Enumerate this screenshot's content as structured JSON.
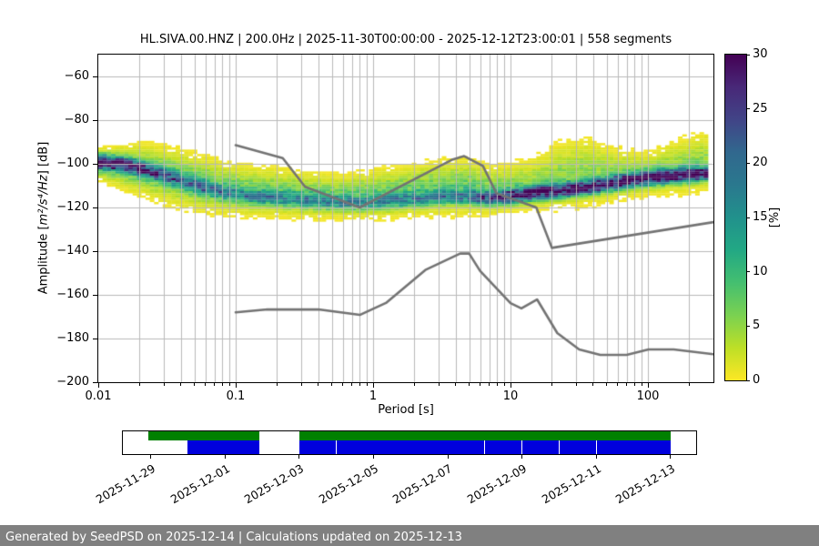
{
  "title": "HL.SIVA.00.HNZ | 200.0Hz | 2025-11-30T00:00:00 - 2025-12-12T23:00:01 | 558 segments",
  "axes": {
    "xlabel": "Period [s]",
    "ylabel_prefix": "Amplitude [",
    "ylabel_math": "m²/s⁴/Hz",
    "ylabel_suffix": "] [dB]",
    "x_log_range": [
      0.01,
      300
    ],
    "y_range": [
      -200,
      -50
    ],
    "x_major_ticks": [
      {
        "value": 0.01,
        "label": "0.01"
      },
      {
        "value": 0.1,
        "label": "0.1"
      },
      {
        "value": 1,
        "label": "1"
      },
      {
        "value": 10,
        "label": "10"
      },
      {
        "value": 100,
        "label": "100"
      }
    ],
    "y_ticks": [
      {
        "value": -60,
        "label": "−60"
      },
      {
        "value": -80,
        "label": "−80"
      },
      {
        "value": -100,
        "label": "−100"
      },
      {
        "value": -120,
        "label": "−120"
      },
      {
        "value": -140,
        "label": "−140"
      },
      {
        "value": -160,
        "label": "−160"
      },
      {
        "value": -180,
        "label": "−180"
      },
      {
        "value": -200,
        "label": "−200"
      }
    ],
    "grid_color": "#b9b9b9"
  },
  "colorbar": {
    "label": "[%]",
    "min": 0,
    "max": 30,
    "ticks": [
      0,
      5,
      10,
      15,
      20,
      25,
      30
    ],
    "colormap_reversed_viridis": [
      [
        0.0,
        "#fde725"
      ],
      [
        0.1,
        "#bddf26"
      ],
      [
        0.2,
        "#7ad151"
      ],
      [
        0.3,
        "#44bf70"
      ],
      [
        0.4,
        "#22a884"
      ],
      [
        0.5,
        "#21918c"
      ],
      [
        0.6,
        "#2a788e"
      ],
      [
        0.7,
        "#31688e"
      ],
      [
        0.8,
        "#414487"
      ],
      [
        0.9,
        "#482878"
      ],
      [
        1.0,
        "#440154"
      ]
    ]
  },
  "chart_data": {
    "type": "heatmap",
    "title": "HL.SIVA.00.HNZ | 200.0Hz | 2025-11-30T00:00:00 - 2025-12-12T23:00:01 | 558 segments",
    "xlabel": "Period [s]",
    "ylabel": "Amplitude [m2/s4/Hz] [dB]",
    "x_scale": "log",
    "xlim": [
      0.01,
      300
    ],
    "ylim": [
      -200,
      -50
    ],
    "colorbar": {
      "label": "[%]",
      "range": [
        0,
        30
      ],
      "colormap": "viridis_r"
    },
    "period_bins_per_decade": 32,
    "db_bin": 1,
    "ppsd_distribution": [
      {
        "p": 0.01,
        "mode": -99,
        "peak": 27,
        "top": -95,
        "bottom": -106,
        "cloud": 8,
        "wisp": 0.3
      },
      {
        "p": 0.014,
        "mode": -100,
        "peak": 24,
        "top": -94,
        "bottom": -109,
        "cloud": 8,
        "wisp": 0.28
      },
      {
        "p": 0.02,
        "mode": -102,
        "peak": 21,
        "top": -93,
        "bottom": -112,
        "cloud": 8,
        "wisp": 0.25
      },
      {
        "p": 0.032,
        "mode": -106,
        "peak": 15,
        "top": -95,
        "bottom": -116,
        "cloud": 8,
        "wisp": 0.18
      },
      {
        "p": 0.05,
        "mode": -110,
        "peak": 13,
        "top": -98,
        "bottom": -119,
        "cloud": 8,
        "wisp": 0.15
      },
      {
        "p": 0.08,
        "mode": -113,
        "peak": 12,
        "top": -101,
        "bottom": -121,
        "cloud": 7,
        "wisp": 0.18
      },
      {
        "p": 0.12,
        "mode": -115,
        "peak": 11,
        "top": -103,
        "bottom": -122,
        "cloud": 7,
        "wisp": 0.2
      },
      {
        "p": 0.2,
        "mode": -116,
        "peak": 11,
        "top": -104,
        "bottom": -122,
        "cloud": 7,
        "wisp": 0.2
      },
      {
        "p": 0.35,
        "mode": -117,
        "peak": 11,
        "top": -106,
        "bottom": -123,
        "cloud": 7,
        "wisp": 0.15
      },
      {
        "p": 0.6,
        "mode": -118,
        "peak": 11,
        "top": -107,
        "bottom": -123,
        "cloud": 7,
        "wisp": 0.12
      },
      {
        "p": 1.0,
        "mode": -118,
        "peak": 11,
        "top": -105,
        "bottom": -123,
        "cloud": 7,
        "wisp": 0.15
      },
      {
        "p": 1.8,
        "mode": -116.5,
        "peak": 12,
        "top": -103,
        "bottom": -122,
        "cloud": 7,
        "wisp": 0.15
      },
      {
        "p": 3.0,
        "mode": -115.5,
        "peak": 12,
        "top": -101,
        "bottom": -121,
        "cloud": 7,
        "wisp": 0.15
      },
      {
        "p": 5.0,
        "mode": -115,
        "peak": 14,
        "top": -100,
        "bottom": -121,
        "cloud": 7,
        "wisp": 0.2
      },
      {
        "p": 7.0,
        "mode": -116,
        "peak": 20,
        "top": -103,
        "bottom": -121,
        "cloud": 6,
        "wisp": 0.15
      },
      {
        "p": 10.0,
        "mode": -115,
        "peak": 26,
        "top": -102,
        "bottom": -120,
        "cloud": 6,
        "wisp": 0.15
      },
      {
        "p": 15.0,
        "mode": -113.5,
        "peak": 28,
        "top": -99,
        "bottom": -119,
        "cloud": 5,
        "wisp": 0.25
      },
      {
        "p": 22.0,
        "mode": -112.5,
        "peak": 29,
        "top": -93,
        "bottom": -118,
        "cloud": 5,
        "wisp": 0.35
      },
      {
        "p": 35.0,
        "mode": -111,
        "peak": 29,
        "top": -91,
        "bottom": -117,
        "cloud": 5,
        "wisp": 0.3
      },
      {
        "p": 60.0,
        "mode": -108.5,
        "peak": 29,
        "top": -95,
        "bottom": -115,
        "cloud": 5,
        "wisp": 0.2
      },
      {
        "p": 100.0,
        "mode": -106.5,
        "peak": 29,
        "top": -96,
        "bottom": -113,
        "cloud": 5,
        "wisp": 0.25
      },
      {
        "p": 160.0,
        "mode": -105.5,
        "peak": 29,
        "top": -91,
        "bottom": -112,
        "cloud": 5,
        "wisp": 0.35
      },
      {
        "p": 260.0,
        "mode": -104.5,
        "peak": 29,
        "top": -88,
        "bottom": -110,
        "cloud": 5,
        "wisp": 0.4
      }
    ],
    "noise_models": {
      "color": "#737373",
      "line_width": 2.6,
      "high": [
        [
          0.1,
          -91.5
        ],
        [
          0.22,
          -97.4
        ],
        [
          0.32,
          -110.5
        ],
        [
          0.8,
          -120.0
        ],
        [
          3.8,
          -98.0
        ],
        [
          4.6,
          -96.5
        ],
        [
          6.3,
          -101.0
        ],
        [
          7.9,
          -113.5
        ],
        [
          15.4,
          -120.0
        ],
        [
          20.0,
          -138.5
        ],
        [
          300.0,
          -126.7
        ]
      ],
      "low": [
        [
          0.1,
          -168.0
        ],
        [
          0.17,
          -166.7
        ],
        [
          0.4,
          -166.7
        ],
        [
          0.8,
          -169.2
        ],
        [
          1.24,
          -163.7
        ],
        [
          2.4,
          -148.6
        ],
        [
          4.3,
          -141.1
        ],
        [
          5.0,
          -141.1
        ],
        [
          6.0,
          -149.0
        ],
        [
          10.0,
          -163.8
        ],
        [
          12.0,
          -166.2
        ],
        [
          15.6,
          -162.1
        ],
        [
          21.9,
          -177.5
        ],
        [
          31.6,
          -185.0
        ],
        [
          45.0,
          -187.5
        ],
        [
          70.0,
          -187.5
        ],
        [
          101.0,
          -185.0
        ],
        [
          154.0,
          -185.0
        ],
        [
          300.0,
          -187.2
        ]
      ]
    }
  },
  "timeline": {
    "start": "2025-11-28T06:00:00",
    "end": "2025-12-13T16:30:00",
    "availability_color": "#008000",
    "coverage_color": "#0000dd",
    "availability_segments": [
      [
        "2025-11-28T22:30:00",
        "2025-12-01T22:15:00"
      ],
      [
        "2025-12-03T00:00:00",
        "2025-12-13T00:00:00"
      ]
    ],
    "coverage_segments": [
      [
        "2025-11-30T00:00:00",
        "2025-12-01T22:15:00"
      ],
      [
        "2025-12-03T00:00:00",
        "2025-12-13T00:00:00"
      ]
    ],
    "coverage_gap_marks": [
      "2025-12-04T00:00:00",
      "2025-12-08T00:00:00",
      "2025-12-09T00:00:00",
      "2025-12-10T00:00:00",
      "2025-12-11T00:00:00"
    ],
    "date_ticks": [
      {
        "date": "2025-11-29T00:00:00",
        "label": "2025-11-29"
      },
      {
        "date": "2025-12-01T00:00:00",
        "label": "2025-12-01"
      },
      {
        "date": "2025-12-03T00:00:00",
        "label": "2025-12-03"
      },
      {
        "date": "2025-12-05T00:00:00",
        "label": "2025-12-05"
      },
      {
        "date": "2025-12-07T00:00:00",
        "label": "2025-12-07"
      },
      {
        "date": "2025-12-09T00:00:00",
        "label": "2025-12-09"
      },
      {
        "date": "2025-12-11T00:00:00",
        "label": "2025-12-11"
      },
      {
        "date": "2025-12-13T00:00:00",
        "label": "2025-12-13"
      }
    ]
  },
  "footer": {
    "text": "Generated by SeedPSD on 2025-12-14 | Calculations updated on 2025-12-13",
    "background": "#808080",
    "text_color": "#ffffff"
  }
}
